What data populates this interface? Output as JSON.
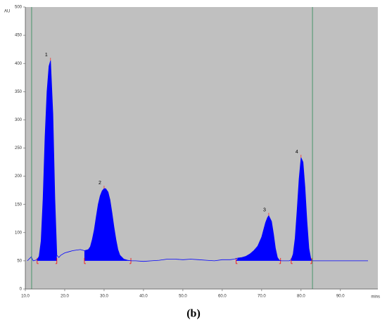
{
  "chart_data": {
    "type": "chromatogram",
    "y_label": "AU",
    "x_label": "mins",
    "caption": "(b)",
    "xlim": [
      10,
      99.5
    ],
    "ylim": [
      0,
      500
    ],
    "xticks": [
      {
        "value": 10,
        "label": "10.0"
      },
      {
        "value": 20,
        "label": "20.0"
      },
      {
        "value": 30,
        "label": "30.0"
      },
      {
        "value": 40,
        "label": "40.0"
      },
      {
        "value": 50,
        "label": "50.0"
      },
      {
        "value": 60,
        "label": "60.0"
      },
      {
        "value": 70,
        "label": "70.0"
      },
      {
        "value": 80,
        "label": "80.0"
      },
      {
        "value": 90,
        "label": "90.0"
      }
    ],
    "yticks": [
      0,
      50,
      100,
      150,
      200,
      250,
      300,
      350,
      400,
      450,
      500
    ],
    "background": "#c0c0c0",
    "marker_color": "#2e8b57",
    "markers": [
      11.6,
      82.9
    ],
    "baseline": 50,
    "series": [
      {
        "color": "#0000ff",
        "x": [
          10.5,
          11.5,
          12,
          12.5,
          13,
          13.5,
          14,
          14.5,
          15,
          15.5,
          16,
          16.4,
          17,
          17.5,
          18,
          18.5,
          19,
          20,
          21,
          22,
          23,
          24,
          25,
          26,
          26.5,
          27,
          27.5,
          28,
          28.5,
          29,
          29.5,
          30,
          30.4,
          31,
          31.5,
          32,
          32.5,
          33,
          33.5,
          34,
          35,
          36,
          37,
          38,
          40,
          42,
          44,
          46,
          48,
          50,
          52,
          54,
          56,
          58,
          60,
          62,
          63,
          64,
          65,
          66,
          67,
          68,
          69,
          70,
          70.5,
          71,
          71.5,
          71.8,
          72.5,
          73,
          73.5,
          74,
          74.5,
          75,
          76,
          77,
          77.5,
          78,
          78.5,
          79,
          79.5,
          80,
          80.5,
          81,
          81.5,
          82,
          82.5,
          83,
          85,
          90,
          95,
          97
        ],
        "values": [
          50,
          57,
          50,
          51,
          52,
          58,
          85,
          160,
          270,
          350,
          395,
          405,
          310,
          160,
          60,
          56,
          60,
          64,
          66,
          68,
          69,
          70,
          68,
          70,
          75,
          88,
          105,
          128,
          150,
          165,
          174,
          178,
          178,
          172,
          158,
          135,
          110,
          88,
          70,
          60,
          53,
          51,
          50,
          50,
          49,
          50,
          51,
          53,
          53,
          52,
          53,
          52,
          51,
          50,
          52,
          52,
          53,
          55,
          56,
          58,
          62,
          68,
          76,
          92,
          105,
          118,
          127,
          130,
          120,
          98,
          72,
          56,
          51,
          50,
          50,
          50,
          52,
          62,
          90,
          140,
          195,
          233,
          225,
          180,
          120,
          72,
          53,
          50,
          50,
          50,
          50,
          50
        ]
      }
    ],
    "peaks": [
      {
        "label": "1",
        "start": 13,
        "end": 18
      },
      {
        "label": "2",
        "start": 25,
        "end": 36.8
      },
      {
        "label": "3",
        "start": 63.5,
        "end": 74.8
      },
      {
        "label": "4",
        "start": 77.5,
        "end": 82.7
      }
    ]
  }
}
